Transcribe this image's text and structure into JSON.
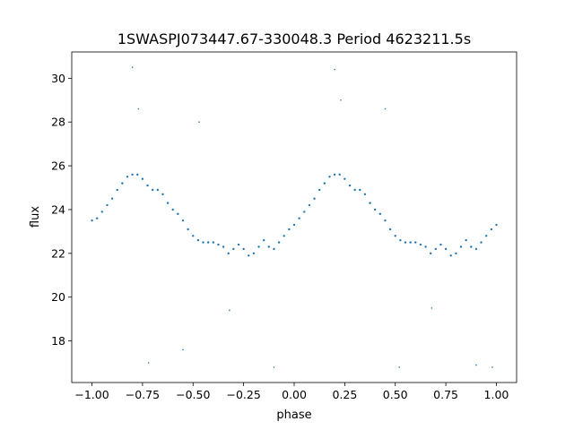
{
  "chart_data": {
    "type": "scatter",
    "title": "1SWASPJ073447.67-330048.3 Period 4623211.5s",
    "xlabel": "phase",
    "ylabel": "flux",
    "xlim": [
      -1.1,
      1.1
    ],
    "ylim": [
      16.1,
      31.2
    ],
    "grid": false,
    "point_color": "#1f77b4",
    "xticks": [
      -1.0,
      -0.75,
      -0.5,
      -0.25,
      0.0,
      0.25,
      0.5,
      0.75,
      1.0
    ],
    "xtick_labels": [
      "−1.00",
      "−0.75",
      "−0.50",
      "−0.25",
      "0.00",
      "0.25",
      "0.50",
      "0.75",
      "1.00"
    ],
    "yticks": [
      18,
      20,
      22,
      24,
      26,
      28,
      30
    ],
    "ytick_labels": [
      "18",
      "20",
      "22",
      "24",
      "26",
      "28",
      "30"
    ],
    "x": [
      -1.0,
      -0.975,
      -0.95,
      -0.925,
      -0.9,
      -0.875,
      -0.85,
      -0.825,
      -0.8,
      -0.775,
      -0.75,
      -0.725,
      -0.7,
      -0.675,
      -0.65,
      -0.625,
      -0.6,
      -0.575,
      -0.55,
      -0.525,
      -0.5,
      -0.475,
      -0.45,
      -0.425,
      -0.4,
      -0.375,
      -0.35,
      -0.325,
      -0.3,
      -0.275,
      -0.25,
      -0.225,
      -0.2,
      -0.175,
      -0.15,
      -0.125,
      -0.1,
      -0.075,
      -0.05,
      -0.025,
      0.0,
      0.025,
      0.05,
      0.075,
      0.1,
      0.125,
      0.15,
      0.175,
      0.2,
      0.225,
      0.25,
      0.275,
      0.3,
      0.325,
      0.35,
      0.375,
      0.4,
      0.425,
      0.45,
      0.475,
      0.5,
      0.525,
      0.55,
      0.575,
      0.6,
      0.625,
      0.65,
      0.675,
      0.7,
      0.725,
      0.75,
      0.775,
      0.8,
      0.825,
      0.85,
      0.875,
      0.9,
      0.925,
      0.95,
      0.975,
      1.0
    ],
    "y": [
      23.5,
      23.6,
      23.9,
      24.2,
      24.5,
      24.9,
      25.2,
      25.5,
      25.6,
      25.6,
      25.4,
      25.1,
      24.9,
      24.9,
      24.7,
      24.3,
      24.0,
      23.8,
      23.5,
      23.1,
      22.8,
      22.6,
      22.5,
      22.5,
      22.5,
      22.4,
      22.3,
      22.0,
      22.2,
      22.4,
      22.2,
      21.9,
      22.0,
      22.3,
      22.6,
      22.3,
      22.2,
      22.5,
      22.8,
      23.1,
      23.3,
      23.6,
      23.9,
      24.2,
      24.5,
      24.9,
      25.2,
      25.5,
      25.6,
      25.6,
      25.4,
      25.1,
      24.9,
      24.9,
      24.7,
      24.3,
      24.0,
      23.8,
      23.5,
      23.1,
      22.8,
      22.6,
      22.5,
      22.5,
      22.5,
      22.4,
      22.3,
      22.0,
      22.2,
      22.4,
      22.2,
      21.9,
      22.0,
      22.3,
      22.6,
      22.3,
      22.2,
      22.5,
      22.8,
      23.1,
      23.3
    ],
    "outliers_x": [
      -0.8,
      -0.77,
      -0.72,
      -0.55,
      -0.47,
      -0.32,
      -0.1,
      0.2,
      0.23,
      0.45,
      0.52,
      0.68,
      0.9,
      0.98
    ],
    "outliers_y": [
      30.5,
      28.6,
      17.0,
      17.6,
      28.0,
      19.4,
      16.8,
      30.4,
      29.0,
      28.6,
      16.8,
      19.5,
      16.9,
      16.8
    ]
  }
}
